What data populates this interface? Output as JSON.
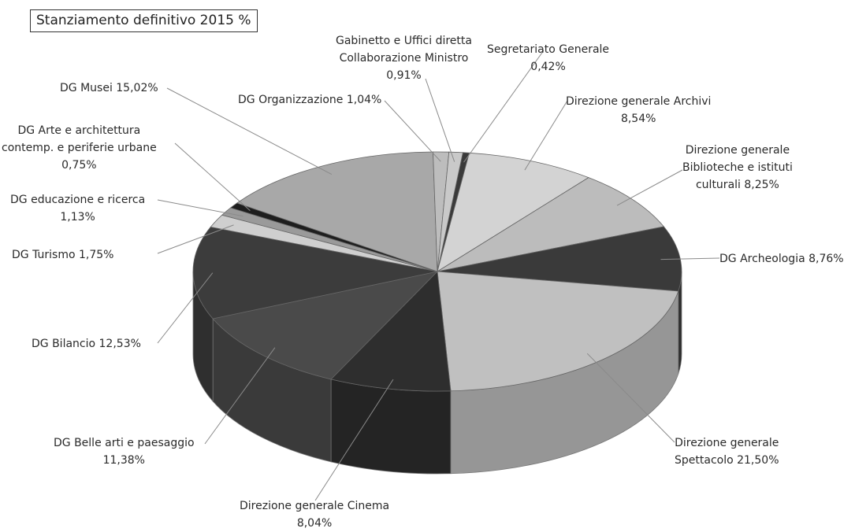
{
  "chart_data": {
    "type": "pie",
    "title": "Stanziamento definitivo 2015 %",
    "slices": [
      {
        "label": [
          "Segretariato Generale",
          "0,42%"
        ],
        "value": 0.42,
        "color": "#3a3a3a"
      },
      {
        "label": [
          "Direzione  generale Archivi",
          "8,54%"
        ],
        "value": 8.54,
        "color": "#d3d3d3"
      },
      {
        "label": [
          "Direzione  generale",
          "Biblioteche e istituti",
          "culturali 8,25%"
        ],
        "value": 8.25,
        "color": "#bcbcbc"
      },
      {
        "label": [
          "DG Archeologia 8,76%"
        ],
        "value": 8.76,
        "color": "#3a3a3a"
      },
      {
        "label": [
          "Direzione  generale",
          "Spettacolo 21,50%"
        ],
        "value": 21.5,
        "color": "#c0c0c0"
      },
      {
        "label": [
          "Direzione  generale Cinema",
          "8,04%"
        ],
        "value": 8.04,
        "color": "#2e2e2e"
      },
      {
        "label": [
          "DG Belle arti e paesaggio",
          "11,38%"
        ],
        "value": 11.38,
        "color": "#4a4a4a"
      },
      {
        "label": [
          "DG Bilancio 12,53%"
        ],
        "value": 12.53,
        "color": "#3c3c3c"
      },
      {
        "label": [
          "DG Turismo        1,75%"
        ],
        "value": 1.75,
        "color": "#cfcfcf"
      },
      {
        "label": [
          "DG educazione e ricerca",
          "1,13%"
        ],
        "value": 1.13,
        "color": "#9a9a9a"
      },
      {
        "label": [
          "DG Arte e architettura",
          "contemp. e periferie urbane",
          "0,75%"
        ],
        "value": 0.75,
        "color": "#1e1e1e"
      },
      {
        "label": [
          "DG Musei 15,02%"
        ],
        "value": 15.02,
        "color": "#a8a8a8"
      },
      {
        "label": [
          "DG Organizzazione 1,04%"
        ],
        "value": 1.04,
        "color": "#bdbdbd"
      },
      {
        "label": [
          "Gabinetto e Uffici diretta",
          "Collaborazione  Ministro",
          "0,91%"
        ],
        "value": 0.91,
        "color": "#c9c9c9"
      }
    ]
  }
}
